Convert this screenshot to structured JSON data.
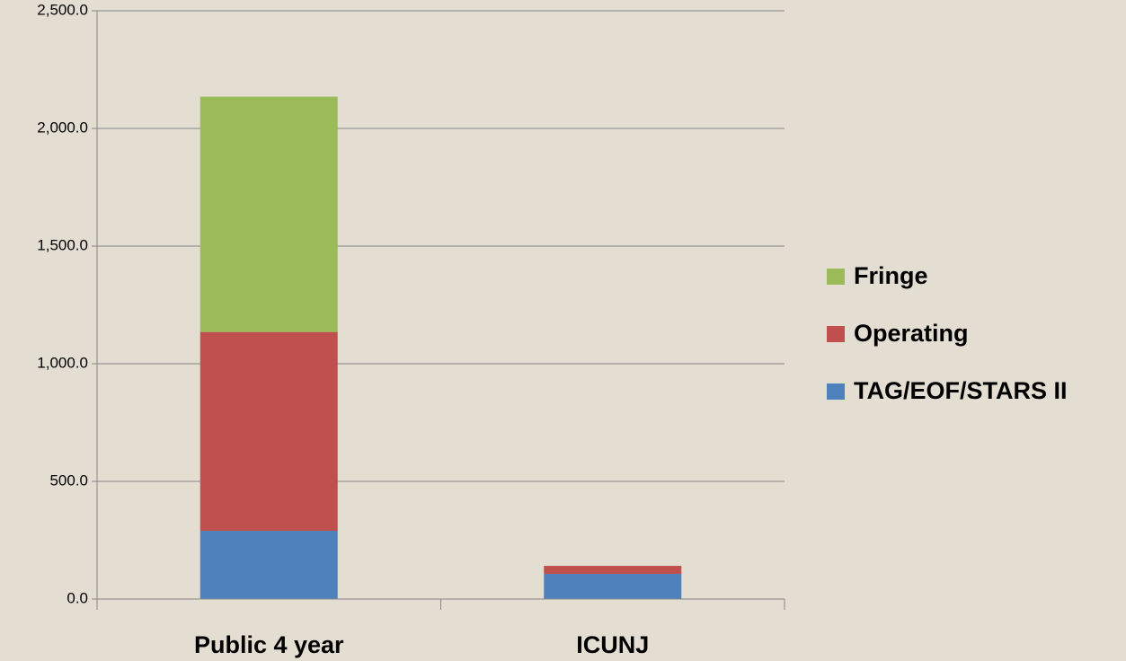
{
  "chart_data": {
    "type": "bar",
    "stacked": true,
    "categories": [
      "Public 4 year",
      "ICUNJ"
    ],
    "series": [
      {
        "name": "TAG/EOF/STARS II",
        "color": "#4f81bd",
        "values": [
          290,
          107
        ]
      },
      {
        "name": "Operating",
        "color": "#c0504d",
        "values": [
          845,
          34
        ]
      },
      {
        "name": "Fringe",
        "color": "#9bbb59",
        "values": [
          1000,
          0
        ]
      }
    ],
    "ylim": [
      0,
      2500
    ],
    "yticks": [
      {
        "value": 0,
        "label": "0.0"
      },
      {
        "value": 500,
        "label": "500.0"
      },
      {
        "value": 1000,
        "label": "1,000.0"
      },
      {
        "value": 1500,
        "label": "1,500.0"
      },
      {
        "value": 2000,
        "label": "2,000.0"
      },
      {
        "value": 2500,
        "label": "2,500.0"
      }
    ],
    "grid": true,
    "legend": "right"
  }
}
